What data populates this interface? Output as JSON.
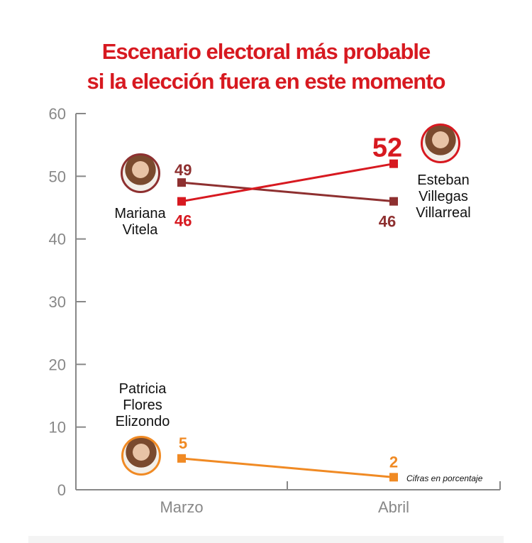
{
  "title_line1": "Escenario electoral más probable",
  "title_line2": "si la elección fuera en este momento",
  "note": "Cifras en porcentaje",
  "chart_data": {
    "type": "line",
    "categories": [
      "Marzo",
      "Abril"
    ],
    "ylim": [
      0,
      60
    ],
    "yticks": [
      0,
      10,
      20,
      30,
      40,
      50,
      60
    ],
    "grid": false,
    "series": [
      {
        "name": "Mariana Vitela",
        "values": [
          49,
          46
        ],
        "color": "#8e3030"
      },
      {
        "name": "Esteban Villegas Villarreal",
        "values": [
          46,
          52
        ],
        "color": "#d71920"
      },
      {
        "name": "Patricia Flores Elizondo",
        "values": [
          5,
          2
        ],
        "color": "#f08a24"
      }
    ]
  },
  "labels": {
    "mariana_l1": "Mariana",
    "mariana_l2": "Vitela",
    "esteban_l1": "Esteban",
    "esteban_l2": "Villegas",
    "esteban_l3": "Villarreal",
    "patricia_l1": "Patricia",
    "patricia_l2": "Flores",
    "patricia_l3": "Elizondo"
  }
}
